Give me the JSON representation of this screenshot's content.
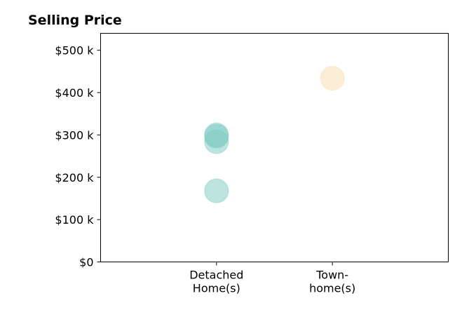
{
  "chart_data": {
    "type": "scatter",
    "title": "Selling Price",
    "xlabel": "",
    "ylabel": "",
    "categories": [
      [
        "Detached",
        "Home(s)"
      ],
      [
        "Town-",
        "home(s)"
      ]
    ],
    "xlim": [
      -1,
      2
    ],
    "ylim": [
      0,
      540000
    ],
    "yticks": [
      0,
      100000,
      200000,
      300000,
      400000,
      500000
    ],
    "ytick_labels": [
      "$0",
      "$100 k",
      "$200 k",
      "$300 k",
      "$400 k",
      "$500 k"
    ],
    "grid": false,
    "points": [
      {
        "category": 0,
        "y": 168000,
        "color": "#7ccbc2"
      },
      {
        "category": 0,
        "y": 284000,
        "color": "#7ccbc2"
      },
      {
        "category": 0,
        "y": 297000,
        "color": "#7ccbc2"
      },
      {
        "category": 0,
        "y": 300000,
        "color": "#7ccbc2"
      },
      {
        "category": 1,
        "y": 434000,
        "color": "#f5deb0"
      }
    ],
    "point_opacity": 0.5
  }
}
